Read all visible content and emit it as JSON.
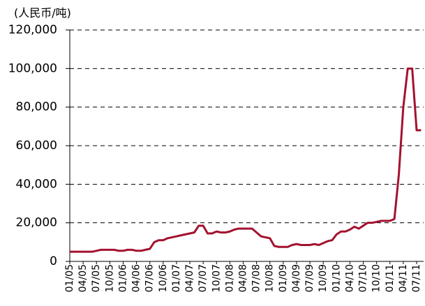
{
  "chart_data": {
    "type": "line",
    "y_label": "(人民币/吨)",
    "categories": [
      "01/05",
      null,
      null,
      "04/05",
      null,
      null,
      "07/05",
      null,
      null,
      "10/05",
      null,
      null,
      "01/06",
      null,
      null,
      "04/06",
      null,
      null,
      "07/06",
      null,
      null,
      "10/06",
      null,
      null,
      "01/07",
      null,
      null,
      "04/07",
      null,
      null,
      "07/07",
      null,
      null,
      "10/07",
      null,
      null,
      "01/08",
      null,
      null,
      "04/08",
      null,
      null,
      "07/08",
      null,
      null,
      "10/08",
      null,
      null,
      "01/09",
      null,
      null,
      "04/09",
      null,
      null,
      "07/09",
      null,
      null,
      "10/09",
      null,
      null,
      "01/10",
      null,
      null,
      "04/10",
      null,
      null,
      "07/10",
      null,
      null,
      "10/10",
      null,
      null,
      "01/11",
      null,
      null,
      "04/11",
      null,
      null,
      "07/11",
      null
    ],
    "values": [
      5000,
      5000,
      5000,
      5000,
      5000,
      5000,
      5500,
      6000,
      6000,
      6000,
      6000,
      5500,
      5500,
      6000,
      6000,
      5500,
      5500,
      6000,
      6500,
      10000,
      11000,
      11000,
      12000,
      12500,
      13000,
      13500,
      14000,
      14500,
      15000,
      18500,
      18500,
      14500,
      14500,
      15500,
      15000,
      15000,
      15500,
      16500,
      17000,
      17000,
      17000,
      17000,
      15000,
      13000,
      12500,
      12000,
      8000,
      7500,
      7500,
      7500,
      8500,
      9000,
      8500,
      8500,
      8500,
      9000,
      8500,
      9500,
      10500,
      11000,
      14000,
      15500,
      15500,
      16500,
      18000,
      17000,
      18500,
      20000,
      20000,
      20500,
      21000,
      21000,
      21000,
      22000,
      45000,
      80000,
      100000,
      100000,
      68000,
      68000
    ],
    "color": "#a3122f",
    "ylim": [
      0,
      120000
    ],
    "yticks": [
      0,
      {
        "value": 20000,
        "label": "20,000"
      },
      {
        "value": 40000,
        "label": "40,000"
      },
      {
        "value": 60000,
        "label": "60,000"
      },
      {
        "value": 80000,
        "label": "80,000"
      },
      {
        "value": 100000,
        "label": "100,000"
      },
      {
        "value": 120000,
        "label": "120,000"
      }
    ],
    "grid": true
  }
}
